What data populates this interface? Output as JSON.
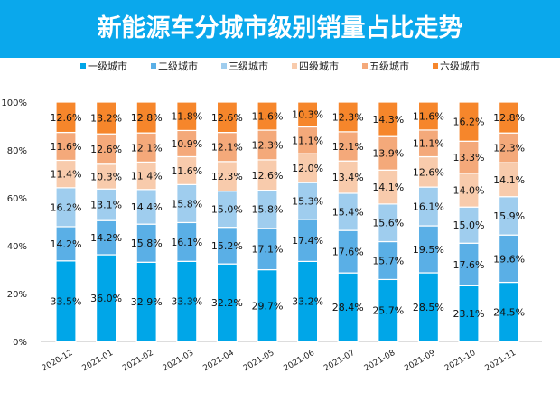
{
  "chart_data": {
    "type": "bar",
    "stacked": true,
    "title": "新能源车分城市级别销量占比走势",
    "categories": [
      "2020-12",
      "2021-01",
      "2021-02",
      "2021-03",
      "2021-04",
      "2021-05",
      "2021-06",
      "2021-07",
      "2021-08",
      "2021-09",
      "2021-10",
      "2021-11"
    ],
    "series": [
      {
        "name": "一级城市",
        "color": "#00a6e8",
        "values": [
          33.5,
          36.0,
          32.9,
          33.3,
          32.2,
          29.7,
          33.2,
          28.4,
          25.7,
          28.5,
          23.1,
          24.5
        ]
      },
      {
        "name": "二级城市",
        "color": "#5aafe6",
        "values": [
          14.2,
          14.2,
          15.8,
          16.1,
          15.2,
          17.1,
          17.4,
          17.6,
          15.7,
          19.5,
          17.6,
          19.6
        ]
      },
      {
        "name": "三级城市",
        "color": "#9fcdee",
        "values": [
          16.2,
          13.1,
          14.4,
          15.8,
          15.0,
          15.8,
          15.3,
          15.4,
          15.6,
          16.1,
          15.0,
          15.9
        ]
      },
      {
        "name": "四级城市",
        "color": "#f8cbac",
        "values": [
          11.4,
          10.3,
          11.4,
          11.6,
          12.3,
          12.6,
          12.0,
          13.4,
          14.1,
          12.6,
          14.0,
          14.1
        ]
      },
      {
        "name": "五级城市",
        "color": "#f4a97a",
        "values": [
          11.6,
          12.6,
          12.1,
          10.9,
          12.1,
          12.3,
          11.1,
          12.1,
          13.9,
          11.1,
          13.3,
          12.3
        ]
      },
      {
        "name": "六级城市",
        "color": "#f6862b",
        "values": [
          12.6,
          13.2,
          12.8,
          11.8,
          12.6,
          11.6,
          10.3,
          12.3,
          14.3,
          11.6,
          16.2,
          12.8
        ]
      }
    ],
    "ylim": [
      0,
      100
    ],
    "yticks": [
      "0%",
      "20%",
      "40%",
      "60%",
      "80%",
      "100%"
    ],
    "legend": "top",
    "grid": false,
    "title_bar_color": "#0aa8ec"
  }
}
